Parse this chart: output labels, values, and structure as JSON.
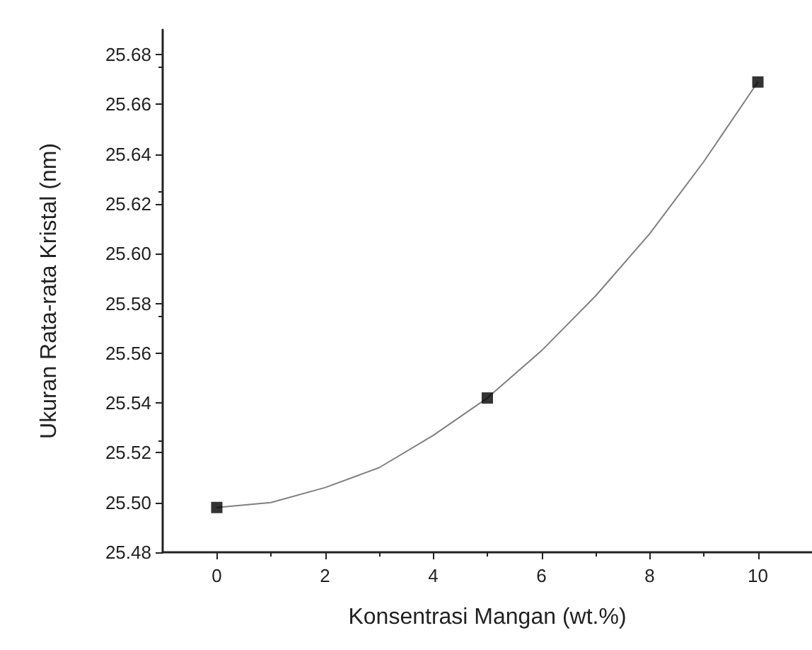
{
  "chart_data": {
    "type": "scatter",
    "xlabel": "Konsentrasi Mangan (wt.%)",
    "ylabel": "Ukuran Rata-rata Kristal (nm)",
    "xlim": [
      -1,
      11
    ],
    "xticks": [
      0,
      2,
      4,
      6,
      8,
      10
    ],
    "ylim": [
      25.48,
      25.69
    ],
    "yticks": [
      25.48,
      {
        "value": 25.5,
        "label": "25.50"
      },
      25.52,
      25.54,
      25.56,
      25.58,
      {
        "value": 25.6,
        "label": "25.60"
      },
      25.62,
      25.64,
      25.66,
      25.68
    ],
    "grid": false,
    "series": [
      {
        "marker": "square",
        "color": "#000000",
        "x": [
          0,
          5,
          10
        ],
        "values": [
          25.498,
          25.542,
          25.669
        ]
      },
      {
        "type": "line",
        "marker": "none",
        "color": "#808080",
        "line_style": "solid",
        "x": [
          0,
          1,
          2,
          3,
          4,
          5,
          6,
          7,
          8,
          9,
          10
        ],
        "values": [
          25.498,
          25.5,
          25.506,
          25.514,
          25.527,
          25.542,
          25.561,
          25.583,
          25.608,
          25.637,
          25.669
        ]
      }
    ]
  }
}
